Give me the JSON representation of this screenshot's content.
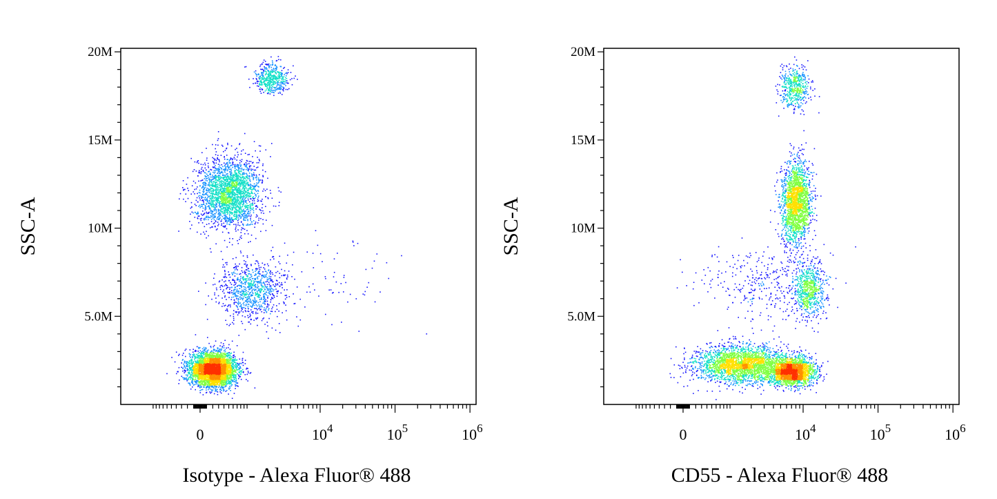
{
  "colors": {
    "low": "#1414ff",
    "mid": "#14e0c8",
    "high": "#ffe000",
    "peak": "#ff3000",
    "axis": "#000000"
  },
  "chart_data": [
    {
      "type": "scatter",
      "title": "",
      "xlabel": "Isotype - Alexa Fluor® 488",
      "ylabel": "SSC-A",
      "x_scale": "biexponential",
      "x_ticks": [
        {
          "label": "0",
          "value": 0
        },
        {
          "base": "10",
          "exp": "4",
          "value": 10000
        },
        {
          "base": "10",
          "exp": "5",
          "value": 100000
        },
        {
          "base": "10",
          "exp": "6",
          "value": 1000000
        }
      ],
      "ylim": [
        0,
        20200000
      ],
      "y_ticks": [
        {
          "label": "5.0M",
          "value": 5000000
        },
        {
          "label": "10M",
          "value": 10000000
        },
        {
          "label": "15M",
          "value": 15000000
        },
        {
          "label": "20M",
          "value": 20000000
        }
      ],
      "populations": [
        {
          "x": 200,
          "y": 2000000,
          "n": 4200,
          "spread_x": 0.55,
          "spread_y": 0.55
        },
        {
          "x": 500,
          "y": 12000000,
          "n": 2400,
          "spread_x": 0.75,
          "spread_y": 1.15
        },
        {
          "x": 1200,
          "y": 6500000,
          "n": 900,
          "spread_x": 0.8,
          "spread_y": 1.0
        },
        {
          "x": 2200,
          "y": 18500000,
          "n": 500,
          "spread_x": 0.4,
          "spread_y": 0.5
        },
        {
          "x": 15000,
          "y": 7000000,
          "n": 60,
          "spread_x": 1.6,
          "spread_y": 1.4
        }
      ]
    },
    {
      "type": "scatter",
      "title": "",
      "xlabel": "CD55 - Alexa Fluor® 488",
      "ylabel": "SSC-A",
      "x_scale": "biexponential",
      "x_ticks": [
        {
          "label": "0",
          "value": 0
        },
        {
          "base": "10",
          "exp": "4",
          "value": 10000
        },
        {
          "base": "10",
          "exp": "5",
          "value": 100000
        },
        {
          "base": "10",
          "exp": "6",
          "value": 1000000
        }
      ],
      "ylim": [
        0,
        20200000
      ],
      "y_ticks": [
        {
          "label": "5.0M",
          "value": 5000000
        },
        {
          "label": "10M",
          "value": 10000000
        },
        {
          "label": "15M",
          "value": 15000000
        },
        {
          "label": "20M",
          "value": 20000000
        }
      ],
      "populations": [
        {
          "x": 1500,
          "y": 2300000,
          "n": 2600,
          "spread_x": 1.1,
          "spread_y": 0.6
        },
        {
          "x": 7000,
          "y": 1900000,
          "n": 2200,
          "spread_x": 0.55,
          "spread_y": 0.45
        },
        {
          "x": 8000,
          "y": 11500000,
          "n": 2000,
          "spread_x": 0.35,
          "spread_y": 1.3
        },
        {
          "x": 12000,
          "y": 6500000,
          "n": 700,
          "spread_x": 0.4,
          "spread_y": 0.9
        },
        {
          "x": 7500,
          "y": 18000000,
          "n": 500,
          "spread_x": 0.35,
          "spread_y": 0.7
        },
        {
          "x": 3000,
          "y": 7000000,
          "n": 350,
          "spread_x": 1.5,
          "spread_y": 1.2
        }
      ]
    }
  ]
}
